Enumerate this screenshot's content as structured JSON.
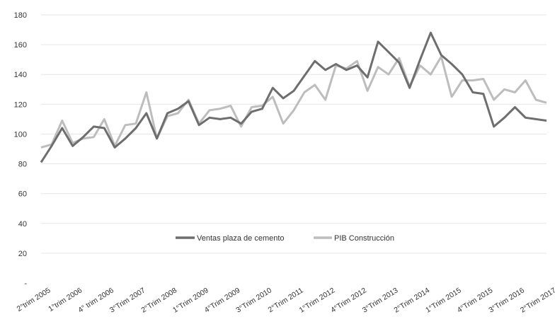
{
  "chart_data": {
    "type": "line",
    "title": "",
    "xlabel": "",
    "ylabel": "",
    "ylim": [
      0,
      180
    ],
    "yticks": [
      0,
      20,
      40,
      60,
      80,
      100,
      120,
      140,
      160,
      180
    ],
    "ytick_labels": [
      "-",
      "20",
      "40",
      "60",
      "80",
      "100",
      "120",
      "140",
      "160",
      "180"
    ],
    "grid": true,
    "legend": "bottom-center",
    "x_tick_labels": [
      {
        "index": 0,
        "label": "2°trim 2005"
      },
      {
        "index": 3,
        "label": "1°trim 2006"
      },
      {
        "index": 6,
        "label": "4° trim 2006"
      },
      {
        "index": 9,
        "label": "3°Trim 2007"
      },
      {
        "index": 12,
        "label": "2°Trim 2008"
      },
      {
        "index": 15,
        "label": "1°Trim 2009"
      },
      {
        "index": 18,
        "label": "4°Trim 2009"
      },
      {
        "index": 21,
        "label": "3°Trim 2010"
      },
      {
        "index": 24,
        "label": "2°Trim 2011"
      },
      {
        "index": 27,
        "label": "1°Trim 2012"
      },
      {
        "index": 30,
        "label": "4°Trim 2012"
      },
      {
        "index": 33,
        "label": "3°Trim 2013"
      },
      {
        "index": 36,
        "label": "2°Trim 2014"
      },
      {
        "index": 39,
        "label": "1°Trim 2015"
      },
      {
        "index": 42,
        "label": "4°Trim 2015"
      },
      {
        "index": 45,
        "label": "3°Trim 2016"
      },
      {
        "index": 48,
        "label": "2°Trim 2017"
      }
    ],
    "series": [
      {
        "name": "Ventas plaza de cemento",
        "color": "#6e6e6e",
        "values": [
          81,
          92,
          104,
          92,
          98,
          105,
          104,
          91,
          97,
          104,
          114,
          97,
          114,
          117,
          122,
          106,
          111,
          110,
          111,
          107,
          115,
          117,
          131,
          124,
          129,
          139,
          149,
          143,
          147,
          143,
          146,
          138,
          162,
          155,
          148,
          131,
          150,
          168,
          153,
          147,
          140,
          128,
          127,
          105,
          111,
          118,
          111,
          110,
          109
        ]
      },
      {
        "name": "PIB Construcción",
        "color": "#bdbdbd",
        "values": [
          91,
          93,
          109,
          94,
          97,
          98,
          110,
          92,
          106,
          107,
          128,
          97,
          112,
          114,
          123,
          107,
          116,
          117,
          119,
          105,
          118,
          119,
          125,
          107,
          116,
          128,
          133,
          123,
          146,
          144,
          149,
          129,
          145,
          140,
          151,
          132,
          146,
          140,
          152,
          125,
          136,
          136,
          137,
          123,
          130,
          128,
          136,
          123,
          121
        ]
      }
    ]
  }
}
